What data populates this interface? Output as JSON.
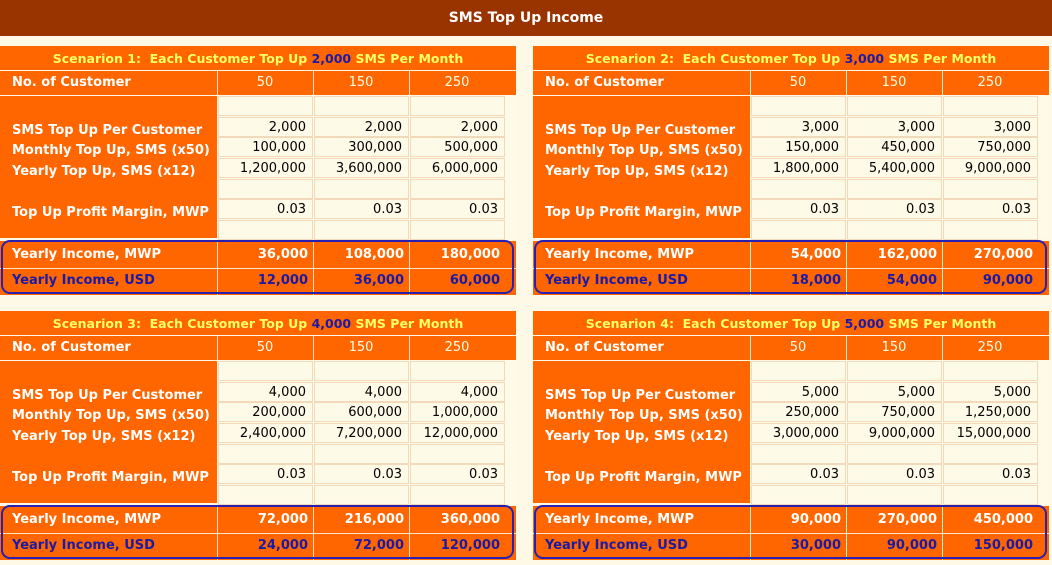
{
  "page_title": "SMS Top Up Income",
  "row_labels": {
    "customers": "No. of Customer",
    "per_customer": "SMS Top Up Per Customer",
    "monthly": "Monthly Top Up, SMS (x50)",
    "yearly": "Yearly Top Up, SMS (x12)",
    "margin": "Top Up Profit Margin, MWP",
    "income_mwp": "Yearly Income, MWP",
    "income_usd": "Yearly Income, USD"
  },
  "columns": [
    "50",
    "150",
    "250"
  ],
  "colors": {
    "title_bg": "#993300",
    "orange": "#ff6600",
    "header_text": "#ffff66",
    "blue": "#1a1aa6",
    "cell_bg": "#fefae8"
  },
  "scenarios": [
    {
      "prefix": "Scenarion 1:  Each Customer Top Up ",
      "amount": "2,000",
      "suffix": " SMS Per Month",
      "per_customer": [
        "2,000",
        "2,000",
        "2,000"
      ],
      "monthly": [
        "100,000",
        "300,000",
        "500,000"
      ],
      "yearly": [
        "1,200,000",
        "3,600,000",
        "6,000,000"
      ],
      "margin": [
        "0.03",
        "0.03",
        "0.03"
      ],
      "income_mwp": [
        "36,000",
        "108,000",
        "180,000"
      ],
      "income_usd": [
        "12,000",
        "36,000",
        "60,000"
      ]
    },
    {
      "prefix": "Scenarion 2:  Each Customer Top Up ",
      "amount": "3,000",
      "suffix": " SMS Per Month",
      "per_customer": [
        "3,000",
        "3,000",
        "3,000"
      ],
      "monthly": [
        "150,000",
        "450,000",
        "750,000"
      ],
      "yearly": [
        "1,800,000",
        "5,400,000",
        "9,000,000"
      ],
      "margin": [
        "0.03",
        "0.03",
        "0.03"
      ],
      "income_mwp": [
        "54,000",
        "162,000",
        "270,000"
      ],
      "income_usd": [
        "18,000",
        "54,000",
        "90,000"
      ]
    },
    {
      "prefix": "Scenarion 3:  Each Customer Top Up ",
      "amount": "4,000",
      "suffix": " SMS Per Month",
      "per_customer": [
        "4,000",
        "4,000",
        "4,000"
      ],
      "monthly": [
        "200,000",
        "600,000",
        "1,000,000"
      ],
      "yearly": [
        "2,400,000",
        "7,200,000",
        "12,000,000"
      ],
      "margin": [
        "0.03",
        "0.03",
        "0.03"
      ],
      "income_mwp": [
        "72,000",
        "216,000",
        "360,000"
      ],
      "income_usd": [
        "24,000",
        "72,000",
        "120,000"
      ]
    },
    {
      "prefix": "Scenarion 4:  Each Customer Top Up ",
      "amount": "5,000",
      "suffix": " SMS Per Month",
      "per_customer": [
        "5,000",
        "5,000",
        "5,000"
      ],
      "monthly": [
        "250,000",
        "750,000",
        "1,250,000"
      ],
      "yearly": [
        "3,000,000",
        "9,000,000",
        "15,000,000"
      ],
      "margin": [
        "0.03",
        "0.03",
        "0.03"
      ],
      "income_mwp": [
        "90,000",
        "270,000",
        "450,000"
      ],
      "income_usd": [
        "30,000",
        "90,000",
        "150,000"
      ]
    }
  ]
}
